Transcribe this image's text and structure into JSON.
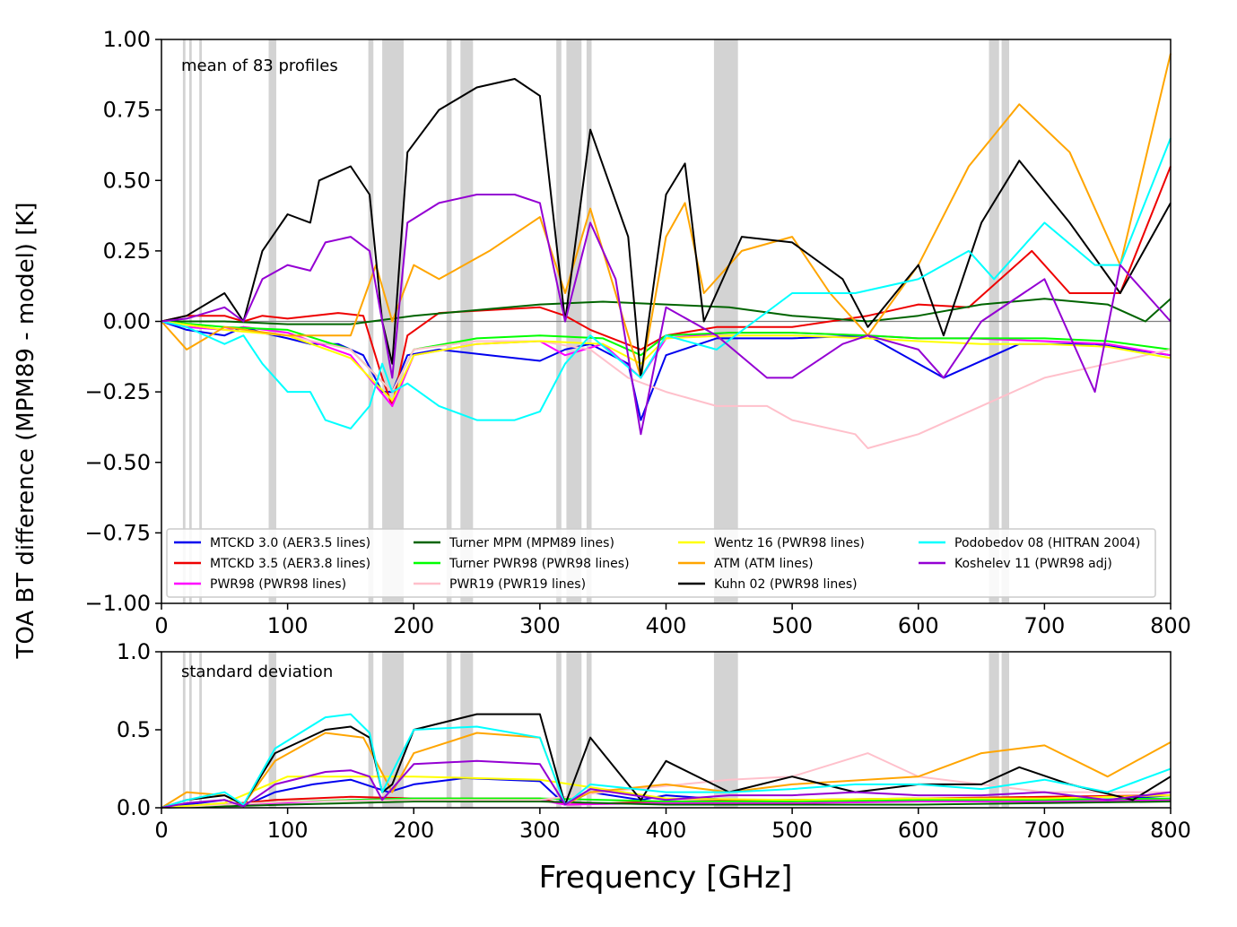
{
  "chart_data": {
    "type": "line",
    "ylabel": "TOA BT difference (MPM89 - model) [K]",
    "xlabel": "Frequency [GHz]",
    "xlim": [
      0,
      800
    ],
    "xticks": [
      "0",
      "100",
      "200",
      "300",
      "400",
      "500",
      "600",
      "700",
      "800"
    ],
    "shaded_bands_ghz": [
      [
        17,
        19
      ],
      [
        22,
        24
      ],
      [
        30,
        32
      ],
      [
        85,
        91
      ],
      [
        164,
        168
      ],
      [
        175,
        192
      ],
      [
        226,
        230
      ],
      [
        237,
        247
      ],
      [
        313,
        317
      ],
      [
        321,
        333
      ],
      [
        337,
        341
      ],
      [
        438,
        457
      ],
      [
        656,
        664
      ],
      [
        666,
        672
      ]
    ],
    "single_bands_ghz": [
      19,
      24,
      31,
      89,
      166,
      183,
      229,
      243,
      315,
      325,
      339,
      448,
      660,
      669
    ],
    "panels": [
      {
        "annotation": "mean of 83 profiles",
        "ylim": [
          -1.0,
          1.0
        ],
        "yticks": [
          "1.00",
          "0.75",
          "0.50",
          "0.25",
          "0.00",
          "−0.25",
          "−0.50",
          "−0.75",
          "−1.00"
        ],
        "zero_line": true
      },
      {
        "annotation": "standard deviation",
        "ylim": [
          0.0,
          1.0
        ],
        "yticks": [
          "1.0",
          "0.5",
          "0.0"
        ]
      }
    ],
    "legend_position": "lower center",
    "series": [
      {
        "name": "MTCKD 3.0 (AER3.5 lines)",
        "color": "#0000ee",
        "mean_x": [
          0,
          20,
          50,
          65,
          80,
          100,
          118,
          140,
          160,
          175,
          183,
          195,
          220,
          260,
          300,
          320,
          340,
          370,
          380,
          400,
          440,
          500,
          560,
          620,
          680,
          740,
          800
        ],
        "mean_y": [
          0,
          -0.03,
          -0.05,
          -0.02,
          -0.04,
          -0.06,
          -0.08,
          -0.08,
          -0.12,
          -0.25,
          -0.25,
          -0.12,
          -0.1,
          -0.12,
          -0.14,
          -0.1,
          -0.08,
          -0.15,
          -0.35,
          -0.12,
          -0.06,
          -0.06,
          -0.05,
          -0.2,
          -0.08,
          -0.08,
          -0.12
        ],
        "std_x": [
          0,
          20,
          50,
          65,
          90,
          120,
          150,
          180,
          200,
          240,
          300,
          320,
          340,
          380,
          400,
          450,
          500,
          550,
          600,
          650,
          700,
          750,
          800
        ],
        "std_y": [
          0,
          0.02,
          0.05,
          0.01,
          0.1,
          0.15,
          0.18,
          0.1,
          0.15,
          0.19,
          0.17,
          0.02,
          0.1,
          0.05,
          0.08,
          0.05,
          0.05,
          0.05,
          0.06,
          0.06,
          0.06,
          0.05,
          0.08
        ]
      },
      {
        "name": "MTCKD 3.5 (AER3.8 lines)",
        "color": "#ee0000",
        "mean_x": [
          0,
          20,
          50,
          65,
          80,
          100,
          120,
          140,
          160,
          175,
          183,
          195,
          220,
          260,
          300,
          320,
          340,
          380,
          400,
          440,
          500,
          560,
          600,
          640,
          690,
          720,
          760,
          800
        ],
        "mean_y": [
          0,
          0.02,
          0.02,
          0.0,
          0.02,
          0.01,
          0.02,
          0.03,
          0.02,
          -0.2,
          -0.3,
          -0.05,
          0.03,
          0.04,
          0.05,
          0.02,
          -0.03,
          -0.1,
          -0.05,
          -0.02,
          -0.02,
          0.02,
          0.06,
          0.05,
          0.25,
          0.1,
          0.1,
          0.55
        ],
        "std_x": [
          0,
          50,
          90,
          150,
          200,
          300,
          320,
          400,
          500,
          600,
          700,
          800
        ],
        "std_y": [
          0,
          0.02,
          0.05,
          0.07,
          0.06,
          0.06,
          0.02,
          0.04,
          0.05,
          0.06,
          0.07,
          0.08
        ]
      },
      {
        "name": "PWR98 (PWR98 lines)",
        "color": "#ff00ff",
        "mean_x": [
          0,
          20,
          50,
          65,
          100,
          150,
          183,
          200,
          250,
          300,
          320,
          350,
          380,
          400,
          450,
          500,
          560,
          600,
          640,
          700,
          750,
          800
        ],
        "mean_y": [
          0,
          -0.02,
          -0.03,
          -0.02,
          -0.04,
          -0.12,
          -0.3,
          -0.12,
          -0.08,
          -0.07,
          -0.12,
          -0.08,
          -0.2,
          -0.06,
          -0.04,
          -0.04,
          -0.05,
          -0.06,
          -0.06,
          -0.07,
          -0.08,
          -0.12
        ],
        "std_x": [
          0,
          50,
          90,
          150,
          200,
          300,
          320,
          400,
          500,
          600,
          700,
          800
        ],
        "std_y": [
          0,
          0.02,
          0.03,
          0.05,
          0.06,
          0.05,
          0.02,
          0.03,
          0.03,
          0.04,
          0.04,
          0.05
        ]
      },
      {
        "name": "Turner MPM (MPM89 lines)",
        "color": "#006400",
        "mean_x": [
          0,
          50,
          100,
          150,
          200,
          250,
          300,
          350,
          400,
          450,
          500,
          560,
          600,
          650,
          700,
          750,
          780,
          800
        ],
        "mean_y": [
          0,
          0.0,
          -0.01,
          -0.01,
          0.02,
          0.04,
          0.06,
          0.07,
          0.06,
          0.05,
          0.02,
          0.0,
          0.02,
          0.06,
          0.08,
          0.06,
          0.0,
          0.08
        ],
        "std_x": [
          0,
          50,
          100,
          200,
          300,
          400,
          500,
          600,
          700,
          800
        ],
        "std_y": [
          0,
          0.01,
          0.02,
          0.04,
          0.04,
          0.02,
          0.02,
          0.02,
          0.03,
          0.04
        ]
      },
      {
        "name": "Turner PWR98 (PWR98 lines)",
        "color": "#00ff00",
        "mean_x": [
          0,
          50,
          100,
          150,
          183,
          200,
          250,
          300,
          350,
          380,
          400,
          450,
          500,
          560,
          600,
          650,
          700,
          750,
          800
        ],
        "mean_y": [
          0,
          -0.02,
          -0.03,
          -0.1,
          -0.25,
          -0.1,
          -0.06,
          -0.05,
          -0.06,
          -0.12,
          -0.05,
          -0.04,
          -0.04,
          -0.05,
          -0.06,
          -0.06,
          -0.06,
          -0.07,
          -0.1
        ],
        "std_x": [
          0,
          50,
          100,
          200,
          300,
          400,
          500,
          600,
          700,
          800
        ],
        "std_y": [
          0,
          0.02,
          0.04,
          0.06,
          0.06,
          0.04,
          0.04,
          0.05,
          0.05,
          0.06
        ]
      },
      {
        "name": "PWR19 (PWR19 lines)",
        "color": "#ffc0cb",
        "mean_x": [
          0,
          50,
          100,
          150,
          183,
          200,
          250,
          300,
          340,
          370,
          400,
          440,
          480,
          500,
          550,
          560,
          600,
          650,
          700,
          750,
          800
        ],
        "mean_y": [
          0,
          -0.03,
          -0.05,
          -0.1,
          -0.25,
          -0.1,
          -0.07,
          -0.07,
          -0.1,
          -0.2,
          -0.25,
          -0.3,
          -0.3,
          -0.35,
          -0.4,
          -0.45,
          -0.4,
          -0.3,
          -0.2,
          -0.15,
          -0.1
        ],
        "std_x": [
          0,
          50,
          100,
          200,
          300,
          350,
          400,
          450,
          500,
          540,
          560,
          600,
          700,
          800
        ],
        "std_y": [
          0,
          0.02,
          0.04,
          0.05,
          0.05,
          0.1,
          0.14,
          0.18,
          0.2,
          0.3,
          0.35,
          0.2,
          0.1,
          0.1
        ]
      },
      {
        "name": "Wentz 16 (PWR98 lines)",
        "color": "#ffff00",
        "mean_x": [
          0,
          50,
          100,
          150,
          183,
          200,
          250,
          300,
          350,
          380,
          400,
          450,
          500,
          560,
          600,
          650,
          700,
          750,
          800
        ],
        "mean_y": [
          0,
          -0.03,
          -0.05,
          -0.13,
          -0.28,
          -0.12,
          -0.08,
          -0.07,
          -0.08,
          -0.15,
          -0.06,
          -0.05,
          -0.05,
          -0.06,
          -0.07,
          -0.08,
          -0.08,
          -0.09,
          -0.13
        ],
        "std_x": [
          0,
          50,
          100,
          200,
          300,
          400,
          500,
          600,
          700,
          800
        ],
        "std_y": [
          0,
          0.03,
          0.2,
          0.2,
          0.18,
          0.06,
          0.05,
          0.06,
          0.06,
          0.08
        ]
      },
      {
        "name": "ATM (ATM lines)",
        "color": "#ffa500",
        "mean_x": [
          0,
          20,
          50,
          100,
          150,
          170,
          183,
          200,
          220,
          260,
          300,
          320,
          340,
          380,
          400,
          415,
          430,
          460,
          500,
          530,
          560,
          600,
          640,
          680,
          720,
          760,
          800
        ],
        "mean_y": [
          0,
          -0.1,
          -0.02,
          -0.05,
          -0.05,
          0.2,
          0.0,
          0.2,
          0.15,
          0.25,
          0.37,
          0.1,
          0.4,
          -0.2,
          0.3,
          0.42,
          0.1,
          0.25,
          0.3,
          0.1,
          -0.05,
          0.2,
          0.55,
          0.77,
          0.6,
          0.2,
          0.95
        ],
        "std_x": [
          0,
          20,
          50,
          65,
          90,
          130,
          160,
          183,
          200,
          250,
          300,
          320,
          340,
          400,
          450,
          500,
          600,
          650,
          700,
          750,
          800
        ],
        "std_y": [
          0,
          0.1,
          0.08,
          0.02,
          0.3,
          0.48,
          0.45,
          0.1,
          0.35,
          0.48,
          0.45,
          0.02,
          0.1,
          0.15,
          0.1,
          0.15,
          0.2,
          0.35,
          0.4,
          0.2,
          0.42
        ]
      },
      {
        "name": "Kuhn 02 (PWR98 lines)",
        "color": "#000000",
        "mean_x": [
          0,
          20,
          50,
          65,
          80,
          100,
          118,
          125,
          150,
          165,
          175,
          183,
          195,
          220,
          250,
          280,
          300,
          320,
          340,
          370,
          380,
          400,
          415,
          430,
          460,
          500,
          540,
          560,
          600,
          620,
          650,
          680,
          720,
          760,
          800
        ],
        "mean_y": [
          0,
          0.02,
          0.1,
          0.0,
          0.25,
          0.38,
          0.35,
          0.5,
          0.55,
          0.45,
          0.0,
          -0.15,
          0.6,
          0.75,
          0.83,
          0.86,
          0.8,
          0.0,
          0.68,
          0.3,
          -0.2,
          0.45,
          0.56,
          0.0,
          0.3,
          0.28,
          0.15,
          -0.02,
          0.2,
          -0.05,
          0.35,
          0.57,
          0.35,
          0.1,
          0.42
        ],
        "std_x": [
          0,
          20,
          50,
          65,
          90,
          130,
          150,
          165,
          175,
          183,
          200,
          250,
          300,
          320,
          340,
          380,
          400,
          450,
          500,
          550,
          600,
          650,
          680,
          720,
          770,
          800
        ],
        "std_y": [
          0,
          0.05,
          0.08,
          0.02,
          0.35,
          0.5,
          0.52,
          0.45,
          0.1,
          0.15,
          0.5,
          0.6,
          0.6,
          0.02,
          0.45,
          0.05,
          0.3,
          0.1,
          0.2,
          0.1,
          0.15,
          0.15,
          0.26,
          0.15,
          0.05,
          0.2
        ]
      },
      {
        "name": "Podobedov 08 (HITRAN 2004)",
        "color": "#00ffff",
        "mean_x": [
          0,
          20,
          50,
          65,
          80,
          100,
          118,
          130,
          150,
          165,
          175,
          183,
          195,
          220,
          250,
          280,
          300,
          320,
          340,
          380,
          400,
          440,
          500,
          550,
          600,
          640,
          660,
          700,
          740,
          760,
          800
        ],
        "mean_y": [
          0,
          -0.02,
          -0.08,
          -0.05,
          -0.15,
          -0.25,
          -0.25,
          -0.35,
          -0.38,
          -0.3,
          -0.15,
          -0.25,
          -0.22,
          -0.3,
          -0.35,
          -0.35,
          -0.32,
          -0.15,
          -0.05,
          -0.2,
          -0.05,
          -0.1,
          0.1,
          0.1,
          0.15,
          0.25,
          0.15,
          0.35,
          0.2,
          0.2,
          0.65
        ],
        "std_x": [
          0,
          20,
          50,
          65,
          90,
          130,
          150,
          165,
          175,
          200,
          250,
          300,
          320,
          340,
          400,
          450,
          500,
          550,
          600,
          650,
          700,
          750,
          800
        ],
        "std_y": [
          0,
          0.05,
          0.1,
          0.02,
          0.38,
          0.58,
          0.6,
          0.48,
          0.1,
          0.5,
          0.52,
          0.45,
          0.02,
          0.15,
          0.1,
          0.1,
          0.12,
          0.15,
          0.15,
          0.12,
          0.18,
          0.1,
          0.25
        ]
      },
      {
        "name": "Koshelev 11 (PWR98 adj)",
        "color": "#9400d3",
        "mean_x": [
          0,
          20,
          50,
          65,
          80,
          100,
          118,
          130,
          150,
          165,
          175,
          183,
          195,
          220,
          250,
          280,
          300,
          320,
          340,
          360,
          380,
          400,
          440,
          480,
          500,
          540,
          560,
          600,
          620,
          650,
          700,
          740,
          760,
          800
        ],
        "mean_y": [
          0,
          0.01,
          0.05,
          0.0,
          0.15,
          0.2,
          0.18,
          0.28,
          0.3,
          0.25,
          0.0,
          -0.2,
          0.35,
          0.42,
          0.45,
          0.45,
          0.42,
          0.0,
          0.35,
          0.15,
          -0.4,
          0.05,
          -0.05,
          -0.2,
          -0.2,
          -0.08,
          -0.05,
          -0.1,
          -0.2,
          0.0,
          0.15,
          -0.25,
          0.2,
          0.0
        ],
        "std_x": [
          0,
          20,
          50,
          65,
          90,
          130,
          150,
          165,
          175,
          200,
          250,
          300,
          320,
          340,
          400,
          450,
          500,
          550,
          600,
          650,
          700,
          750,
          800
        ],
        "std_y": [
          0,
          0.03,
          0.05,
          0.01,
          0.15,
          0.23,
          0.24,
          0.2,
          0.05,
          0.28,
          0.3,
          0.28,
          0.02,
          0.12,
          0.05,
          0.08,
          0.08,
          0.1,
          0.08,
          0.08,
          0.1,
          0.05,
          0.1
        ]
      }
    ]
  }
}
